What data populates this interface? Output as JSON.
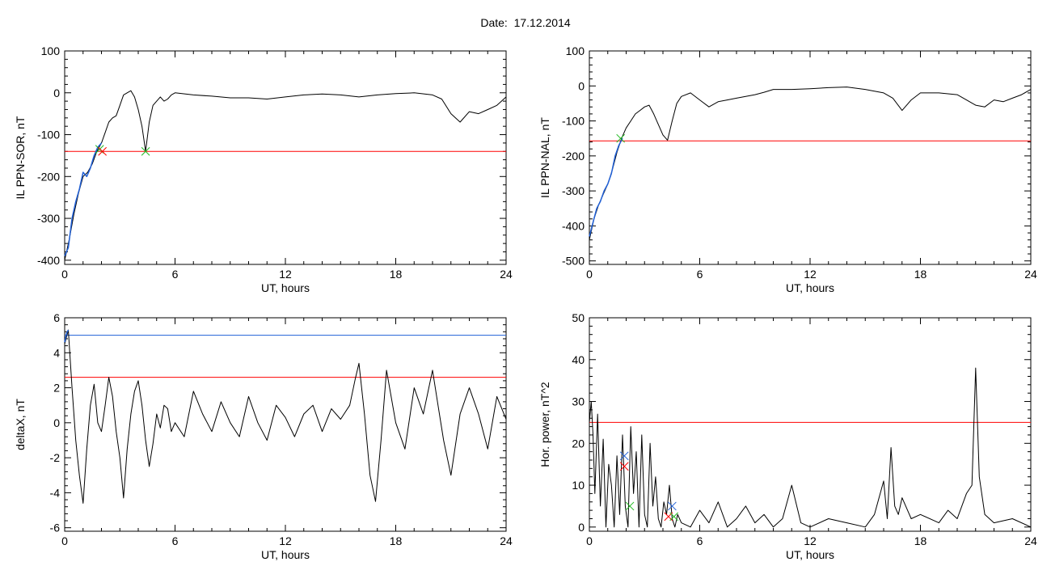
{
  "header": {
    "date_label": "Date:",
    "date_value": "17.12.2014"
  },
  "colors": {
    "black": "#000000",
    "red": "#ff0000",
    "blue": "#1f5fd6",
    "green": "#22bb22"
  },
  "chart_data": [
    {
      "type": "line",
      "title": "",
      "xlabel": "UT, hours",
      "ylabel": "IL PPN-SOR, nT",
      "xlim": [
        0,
        24
      ],
      "ylim": [
        -410,
        100
      ],
      "xticks": [
        0,
        6,
        12,
        18,
        24
      ],
      "yticks": [
        -400,
        -300,
        -200,
        -100,
        0,
        100
      ],
      "threshold_red": -140,
      "series": [
        {
          "color": "#000000",
          "x": [
            0,
            0.25,
            0.5,
            0.75,
            1.0,
            1.25,
            1.5,
            1.75,
            2.0,
            2.2,
            2.4,
            2.6,
            2.8,
            3.0,
            3.2,
            3.4,
            3.6,
            3.8,
            4.0,
            4.2,
            4.4,
            4.6,
            4.8,
            5.0,
            5.2,
            5.4,
            5.6,
            5.8,
            6.0,
            7,
            8,
            9,
            10,
            11,
            12,
            13,
            14,
            15,
            16,
            17,
            18,
            19,
            20,
            20.5,
            21.0,
            21.5,
            22.0,
            22.5,
            23.0,
            23.5,
            24.0
          ],
          "y": [
            -400,
            -350,
            -290,
            -240,
            -200,
            -190,
            -170,
            -140,
            -120,
            -95,
            -70,
            -60,
            -55,
            -30,
            -5,
            0,
            5,
            -10,
            -40,
            -80,
            -140,
            -70,
            -30,
            -20,
            -10,
            -20,
            -15,
            -5,
            0,
            -5,
            -8,
            -12,
            -12,
            -15,
            -10,
            -5,
            -3,
            -5,
            -10,
            -5,
            -2,
            0,
            -5,
            -15,
            -50,
            -70,
            -45,
            -50,
            -40,
            -30,
            -10
          ]
        },
        {
          "color": "#1f5fd6",
          "x": [
            0,
            0.2,
            0.4,
            0.6,
            0.8,
            1.0,
            1.2,
            1.4,
            1.6,
            1.8,
            2.0
          ],
          "y": [
            -390,
            -370,
            -300,
            -260,
            -230,
            -190,
            -200,
            -180,
            -150,
            -130,
            -120
          ]
        }
      ],
      "markers": [
        {
          "x": 1.9,
          "y": -135,
          "color": "#22bb22"
        },
        {
          "x": 2.05,
          "y": -140,
          "color": "#ff0000"
        },
        {
          "x": 4.4,
          "y": -140,
          "color": "#22bb22"
        }
      ]
    },
    {
      "type": "line",
      "title": "",
      "xlabel": "UT, hours",
      "ylabel": "IL PPN-NAL, nT",
      "xlim": [
        0,
        24
      ],
      "ylim": [
        -510,
        100
      ],
      "xticks": [
        0,
        6,
        12,
        18,
        24
      ],
      "yticks": [
        -500,
        -400,
        -300,
        -200,
        -100,
        0,
        100
      ],
      "threshold_red": -157,
      "series": [
        {
          "color": "#000000",
          "x": [
            0,
            0.25,
            0.5,
            0.75,
            1.0,
            1.25,
            1.5,
            1.75,
            2.0,
            2.25,
            2.5,
            2.75,
            3.0,
            3.25,
            3.5,
            3.75,
            4.0,
            4.25,
            4.5,
            4.75,
            5.0,
            5.5,
            6.0,
            6.5,
            7.0,
            7.5,
            8.0,
            8.5,
            9.0,
            9.5,
            10,
            11,
            12,
            13,
            14,
            15,
            16,
            16.5,
            17.0,
            17.5,
            18,
            19,
            20,
            20.5,
            21.0,
            21.5,
            22.0,
            22.5,
            23.0,
            23.5,
            24.0
          ],
          "y": [
            -440,
            -380,
            -340,
            -310,
            -280,
            -240,
            -190,
            -150,
            -120,
            -100,
            -80,
            -70,
            -60,
            -55,
            -80,
            -110,
            -140,
            -155,
            -100,
            -50,
            -30,
            -20,
            -40,
            -60,
            -45,
            -40,
            -35,
            -30,
            -25,
            -18,
            -10,
            -10,
            -8,
            -5,
            -3,
            -10,
            -20,
            -35,
            -70,
            -40,
            -20,
            -20,
            -25,
            -40,
            -55,
            -60,
            -40,
            -45,
            -35,
            -25,
            -10
          ]
        },
        {
          "color": "#1f5fd6",
          "x": [
            0,
            0.2,
            0.4,
            0.6,
            0.8,
            1.0,
            1.2,
            1.4,
            1.6,
            1.8
          ],
          "y": [
            -430,
            -390,
            -350,
            -330,
            -300,
            -280,
            -250,
            -200,
            -170,
            -150
          ]
        }
      ],
      "markers": [
        {
          "x": 1.7,
          "y": -150,
          "color": "#22bb22"
        }
      ]
    },
    {
      "type": "line",
      "title": "",
      "xlabel": "UT, hours",
      "ylabel": "deltaX, nT",
      "xlim": [
        0,
        24
      ],
      "ylim": [
        -6.2,
        6
      ],
      "xticks": [
        0,
        6,
        12,
        18,
        24
      ],
      "yticks": [
        -6,
        -4,
        -2,
        0,
        2,
        4,
        6
      ],
      "threshold_blue": 5.0,
      "threshold_red": 2.6,
      "series": [
        {
          "color": "#000000",
          "x": [
            0,
            0.2,
            0.4,
            0.6,
            0.8,
            1.0,
            1.2,
            1.4,
            1.6,
            1.8,
            2.0,
            2.2,
            2.4,
            2.6,
            2.8,
            3.0,
            3.2,
            3.4,
            3.6,
            3.8,
            4.0,
            4.2,
            4.4,
            4.6,
            4.8,
            5.0,
            5.2,
            5.4,
            5.6,
            5.8,
            6.0,
            6.5,
            7.0,
            7.5,
            8.0,
            8.5,
            9.0,
            9.5,
            10.0,
            10.5,
            11.0,
            11.5,
            12.0,
            12.5,
            13.0,
            13.5,
            14.0,
            14.5,
            15.0,
            15.5,
            15.8,
            16.0,
            16.3,
            16.6,
            16.9,
            17.2,
            17.5,
            18.0,
            18.5,
            19.0,
            19.5,
            20.0,
            20.3,
            20.6,
            21.0,
            21.5,
            22.0,
            22.5,
            23.0,
            23.5,
            24.0
          ],
          "y": [
            4.5,
            5.3,
            2.0,
            -1.0,
            -3.0,
            -4.6,
            -1.5,
            1.0,
            2.2,
            0.0,
            -0.5,
            1.0,
            2.6,
            1.5,
            -0.5,
            -2.0,
            -4.3,
            -1.5,
            0.5,
            1.8,
            2.4,
            1.0,
            -1.0,
            -2.5,
            -1.2,
            0.5,
            -0.3,
            1.0,
            0.8,
            -0.5,
            0.0,
            -0.8,
            1.8,
            0.5,
            -0.5,
            1.2,
            0.0,
            -0.8,
            1.5,
            0.0,
            -1.0,
            1.0,
            0.3,
            -0.8,
            0.5,
            1.0,
            -0.5,
            0.8,
            0.2,
            1.0,
            2.5,
            3.4,
            0.5,
            -3.0,
            -4.5,
            -1.0,
            3.0,
            0.0,
            -1.5,
            2.0,
            0.5,
            3.0,
            1.0,
            -1.0,
            -3.0,
            0.5,
            2.0,
            0.5,
            -1.5,
            1.5,
            0.2
          ]
        },
        {
          "color": "#1f5fd6",
          "x": [
            0,
            0.1,
            0.2
          ],
          "y": [
            4.6,
            5.1,
            5.3
          ]
        }
      ],
      "markers": []
    },
    {
      "type": "line",
      "title": "",
      "xlabel": "UT, hours",
      "ylabel": "Hor. power, nT^2",
      "xlim": [
        0,
        24
      ],
      "ylim": [
        -1,
        50
      ],
      "xticks": [
        0,
        6,
        12,
        18,
        24
      ],
      "yticks": [
        0,
        10,
        20,
        30,
        40,
        50
      ],
      "threshold_red": 25,
      "series": [
        {
          "color": "#000000",
          "x": [
            0,
            0.1,
            0.2,
            0.3,
            0.45,
            0.6,
            0.75,
            0.9,
            1.05,
            1.2,
            1.35,
            1.5,
            1.65,
            1.8,
            1.95,
            2.1,
            2.25,
            2.4,
            2.55,
            2.7,
            2.85,
            3.0,
            3.15,
            3.3,
            3.45,
            3.6,
            3.75,
            3.9,
            4.05,
            4.2,
            4.35,
            4.5,
            4.65,
            4.8,
            5.0,
            5.5,
            6.0,
            6.5,
            7.0,
            7.5,
            8.0,
            8.5,
            9.0,
            9.5,
            10.0,
            10.5,
            11.0,
            11.5,
            12.0,
            13.0,
            14.0,
            15.0,
            15.5,
            16.0,
            16.2,
            16.4,
            16.6,
            16.8,
            17.0,
            17.5,
            18.0,
            19.0,
            19.5,
            20.0,
            20.5,
            20.8,
            21.0,
            21.2,
            21.5,
            22.0,
            23.0,
            24.0
          ],
          "y": [
            25,
            30,
            22,
            8,
            27,
            5,
            21,
            0,
            15,
            10,
            0,
            17,
            3,
            22,
            5,
            0,
            24,
            8,
            18,
            0,
            22,
            3,
            0,
            20,
            5,
            12,
            2,
            0,
            6,
            3,
            10,
            2,
            0,
            3,
            1,
            0,
            4,
            1,
            6,
            0,
            2,
            5,
            1,
            3,
            0,
            2,
            10,
            1,
            0,
            2,
            1,
            0,
            3,
            11,
            2,
            19,
            5,
            3,
            7,
            2,
            3,
            1,
            4,
            2,
            8,
            10,
            38,
            12,
            3,
            1,
            2,
            0
          ]
        }
      ],
      "markers": [
        {
          "x": 1.9,
          "y": 17,
          "color": "#1f5fd6"
        },
        {
          "x": 1.9,
          "y": 14.5,
          "color": "#ff0000"
        },
        {
          "x": 2.2,
          "y": 5,
          "color": "#22bb22"
        },
        {
          "x": 4.5,
          "y": 5,
          "color": "#1f5fd6"
        },
        {
          "x": 4.3,
          "y": 2.5,
          "color": "#ff0000"
        },
        {
          "x": 4.6,
          "y": 2.5,
          "color": "#22bb22"
        }
      ]
    }
  ]
}
